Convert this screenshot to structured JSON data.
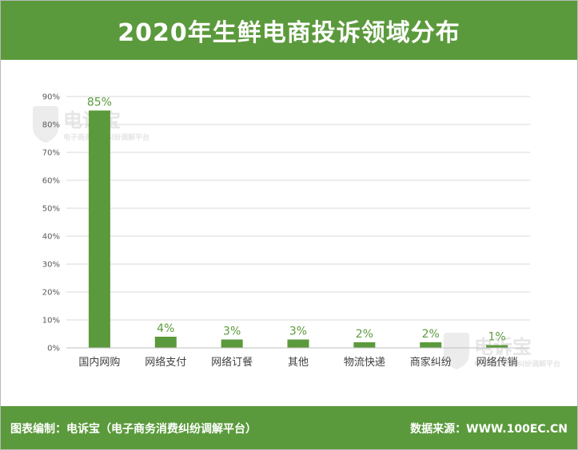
{
  "header": {
    "title": "2020年生鲜电商投诉领域分布"
  },
  "footer": {
    "left": "图表编制：电诉宝（电子商务消费纠纷调解平台）",
    "right": "数据来源：WWW.100EC.CN"
  },
  "watermark": {
    "name": "电诉宝",
    "subtitle": "电子商务消费纠纷调解平台"
  },
  "colors": {
    "bar": "#5b9a3c",
    "band": "#5b9a3c",
    "grid": "#d9d9d9",
    "label": "#5b9a3c"
  },
  "chart_data": {
    "type": "bar",
    "categories": [
      "国内网购",
      "网络支付",
      "网络订餐",
      "其他",
      "物流快递",
      "商家纠纷",
      "网络传销"
    ],
    "values": [
      85,
      4,
      3,
      3,
      2,
      2,
      1
    ],
    "data_labels": [
      "85%",
      "4%",
      "3%",
      "3%",
      "2%",
      "2%",
      "1%"
    ],
    "yticks": [
      "0%",
      "10%",
      "20%",
      "30%",
      "40%",
      "50%",
      "60%",
      "70%",
      "80%",
      "90%"
    ],
    "ylim": [
      0,
      90
    ],
    "grid": true,
    "legend": "none",
    "title": "2020年生鲜电商投诉领域分布"
  }
}
